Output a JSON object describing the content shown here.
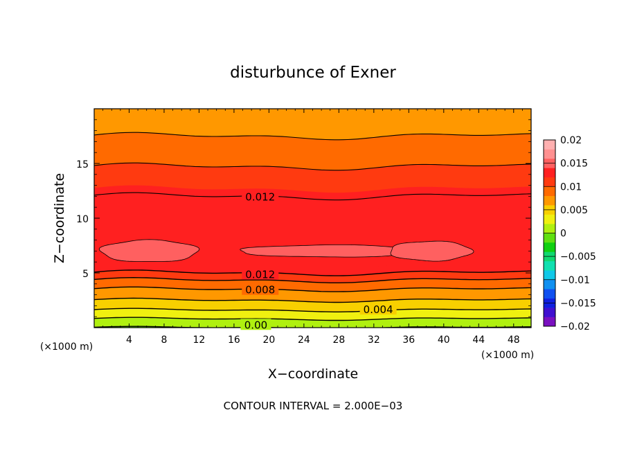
{
  "chart_data": {
    "type": "contour",
    "title": "disturbunce of Exner",
    "xlabel": "X−coordinate",
    "ylabel": "Z−coordinate",
    "x_unit_left": "(×1000 m)",
    "x_unit_right": "(×1000 m)",
    "xlim": [
      0,
      50
    ],
    "ylim": [
      0,
      20
    ],
    "xticks": [
      4,
      8,
      12,
      16,
      20,
      24,
      28,
      32,
      36,
      40,
      44,
      48
    ],
    "xtick_labels": [
      "4",
      "8",
      "12",
      "16",
      "20",
      "24",
      "28",
      "32",
      "36",
      "40",
      "44",
      "48"
    ],
    "yticks": [
      5,
      10,
      15
    ],
    "ytick_labels": [
      "5",
      "10",
      "15"
    ],
    "contour_interval_text": "CONTOUR INTERVAL = 2.000E−03",
    "colorbar": {
      "min": -0.02,
      "max": 0.02,
      "ticks": [
        0.02,
        0.015,
        0.01,
        0.005,
        0,
        -0.005,
        -0.01,
        -0.015,
        -0.02
      ],
      "tick_labels": [
        "0.02",
        "0.015",
        "0.01",
        "0.005",
        "0",
        "−0.005",
        "−0.01",
        "−0.015",
        "−0.02"
      ],
      "colors": [
        "#7a10c0",
        "#4010d0",
        "#1020e0",
        "#1050f0",
        "#1090f0",
        "#10c8e8",
        "#10e0b0",
        "#10d870",
        "#10d010",
        "#60e010",
        "#b0f010",
        "#f0f010",
        "#f8d000",
        "#ff9800",
        "#ff6a00",
        "#ff3a10",
        "#ff2020",
        "#ff6060",
        "#ff9090",
        "#ffb0b0"
      ]
    },
    "z_profile": {
      "z": [
        0.0,
        0.4,
        0.8,
        1.2,
        1.6,
        2.0,
        2.5,
        3.0,
        3.5,
        4.0,
        4.5,
        5.0,
        6.0,
        7.0,
        8.0,
        10.0,
        12.0,
        14.0,
        15.0,
        17.5,
        20.0
      ],
      "value": [
        0.0,
        0.001,
        0.002,
        0.003,
        0.004,
        0.005,
        0.006,
        0.007,
        0.008,
        0.009,
        0.0105,
        0.012,
        0.0135,
        0.0142,
        0.0138,
        0.013,
        0.012,
        0.0105,
        0.0098,
        0.008,
        0.0072
      ]
    },
    "labeled_contours": [
      {
        "text": "0.012",
        "x": 19,
        "z": 12.0
      },
      {
        "text": "0.012",
        "x": 19,
        "z": 4.9
      },
      {
        "text": "0.008",
        "x": 19,
        "z": 3.5
      },
      {
        "text": "0.004",
        "x": 32.5,
        "z": 1.7
      },
      {
        "text": "0.00",
        "x": 18.5,
        "z": 0.3
      }
    ]
  }
}
